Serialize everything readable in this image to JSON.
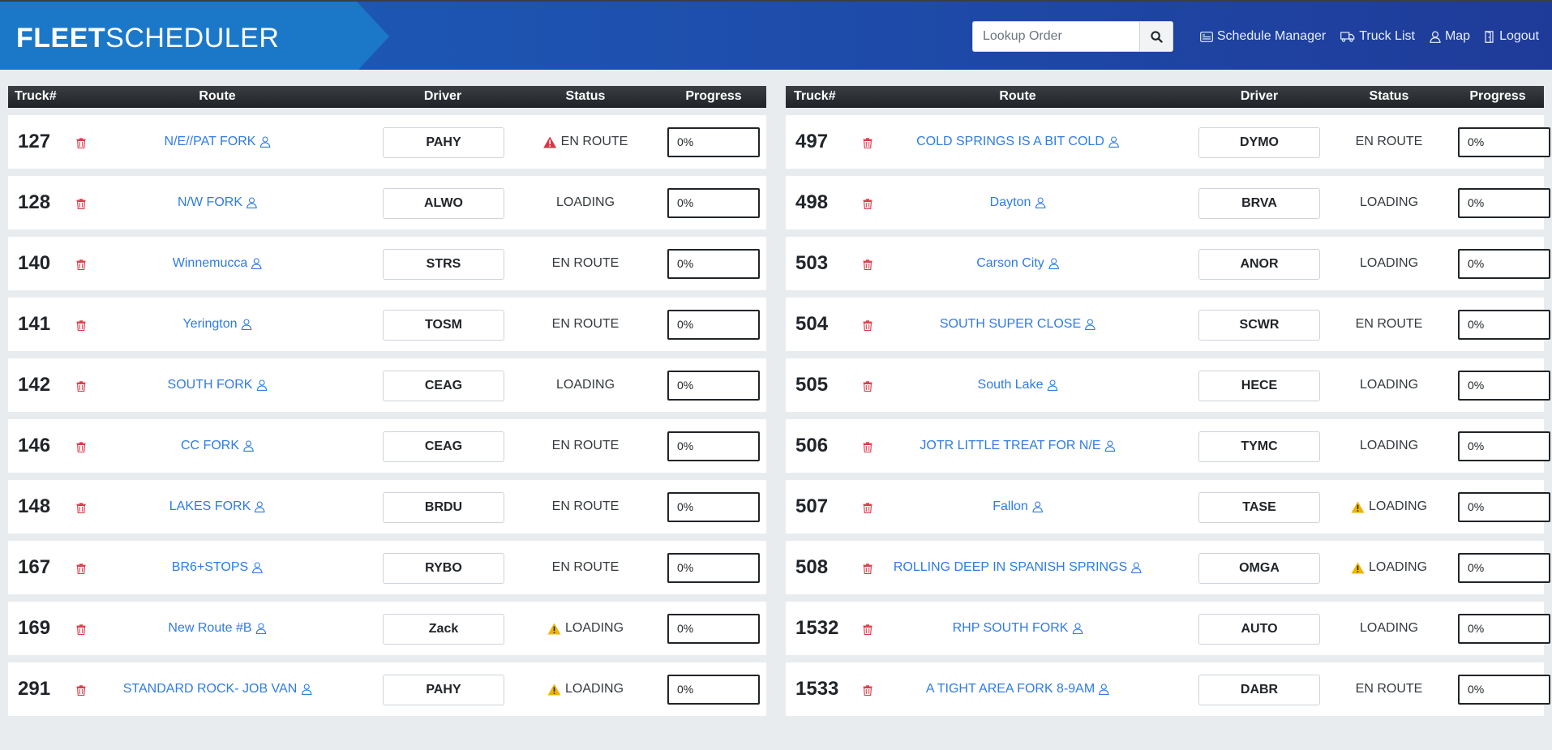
{
  "header": {
    "logo_bold": "FLEET",
    "logo_thin": "SCHEDULER",
    "search_placeholder": "Lookup Order",
    "nav": {
      "schedule_manager": "Schedule Manager",
      "truck_list": "Truck List",
      "map": "Map",
      "logout": "Logout"
    }
  },
  "columns": {
    "truck": "Truck#",
    "route": "Route",
    "driver": "Driver",
    "status": "Status",
    "progress": "Progress"
  },
  "colors": {
    "route_link": "#2f7be5",
    "trash": "#dc3545",
    "alert_red": "#dc3545",
    "alert_yellow": "#f0b400"
  },
  "left_table": [
    {
      "truck": "127",
      "route": "N/E//PAT FORK",
      "driver": "PAHY",
      "status": "EN ROUTE",
      "alert": "red",
      "progress": "0%"
    },
    {
      "truck": "128",
      "route": "N/W FORK",
      "driver": "ALWO",
      "status": "LOADING",
      "alert": "",
      "progress": "0%"
    },
    {
      "truck": "140",
      "route": "Winnemucca",
      "driver": "STRS",
      "status": "EN ROUTE",
      "alert": "",
      "progress": "0%"
    },
    {
      "truck": "141",
      "route": "Yerington",
      "driver": "TOSM",
      "status": "EN ROUTE",
      "alert": "",
      "progress": "0%"
    },
    {
      "truck": "142",
      "route": "SOUTH FORK",
      "driver": "CEAG",
      "status": "LOADING",
      "alert": "",
      "progress": "0%"
    },
    {
      "truck": "146",
      "route": "CC FORK",
      "driver": "CEAG",
      "status": "EN ROUTE",
      "alert": "",
      "progress": "0%"
    },
    {
      "truck": "148",
      "route": "LAKES FORK",
      "driver": "BRDU",
      "status": "EN ROUTE",
      "alert": "",
      "progress": "0%"
    },
    {
      "truck": "167",
      "route": "BR6+STOPS",
      "driver": "RYBO",
      "status": "EN ROUTE",
      "alert": "",
      "progress": "0%"
    },
    {
      "truck": "169",
      "route": "New Route #B",
      "driver": "Zack",
      "status": "LOADING",
      "alert": "yellow",
      "progress": "0%"
    },
    {
      "truck": "291",
      "route": "STANDARD ROCK- JOB VAN",
      "driver": "PAHY",
      "status": "LOADING",
      "alert": "yellow",
      "progress": "0%"
    }
  ],
  "right_table": [
    {
      "truck": "497",
      "route": "COLD SPRINGS IS A BIT COLD",
      "driver": "DYMO",
      "status": "EN ROUTE",
      "alert": "",
      "progress": "0%"
    },
    {
      "truck": "498",
      "route": "Dayton",
      "driver": "BRVA",
      "status": "LOADING",
      "alert": "",
      "progress": "0%"
    },
    {
      "truck": "503",
      "route": "Carson City",
      "driver": "ANOR",
      "status": "LOADING",
      "alert": "",
      "progress": "0%"
    },
    {
      "truck": "504",
      "route": "SOUTH SUPER CLOSE",
      "driver": "SCWR",
      "status": "EN ROUTE",
      "alert": "",
      "progress": "0%"
    },
    {
      "truck": "505",
      "route": "South Lake",
      "driver": "HECE",
      "status": "LOADING",
      "alert": "",
      "progress": "0%"
    },
    {
      "truck": "506",
      "route": "JOTR LITTLE TREAT FOR N/E",
      "driver": "TYMC",
      "status": "LOADING",
      "alert": "",
      "progress": "0%"
    },
    {
      "truck": "507",
      "route": "Fallon",
      "driver": "TASE",
      "status": "LOADING",
      "alert": "yellow",
      "progress": "0%"
    },
    {
      "truck": "508",
      "route": "ROLLING DEEP IN SPANISH SPRINGS",
      "driver": "OMGA",
      "status": "LOADING",
      "alert": "yellow",
      "progress": "0%"
    },
    {
      "truck": "1532",
      "route": "RHP SOUTH FORK",
      "driver": "AUTO",
      "status": "LOADING",
      "alert": "",
      "progress": "0%"
    },
    {
      "truck": "1533",
      "route": "A TIGHT AREA FORK 8-9AM",
      "driver": "DABR",
      "status": "EN ROUTE",
      "alert": "",
      "progress": "0%"
    }
  ]
}
